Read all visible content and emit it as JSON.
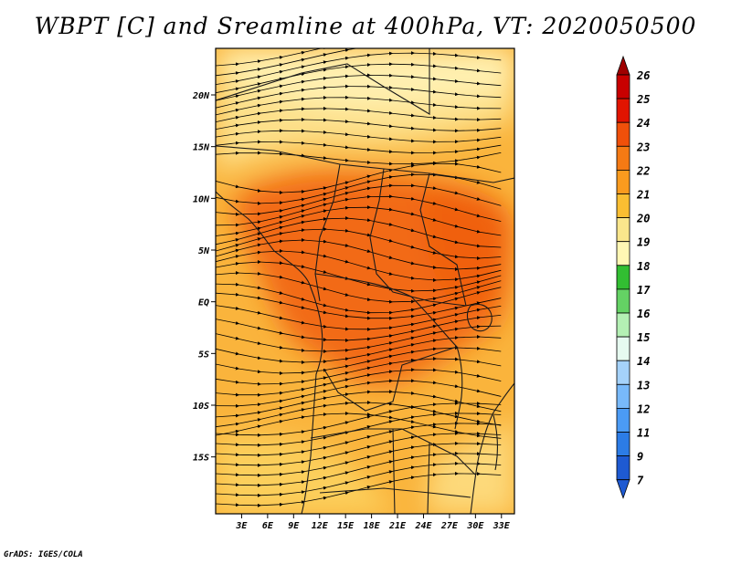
{
  "title": "WBPT [C] and Sreamline at 400hPa, VT: 2020050500",
  "credit": "GrADS: IGES/COLA",
  "map": {
    "lon_range": [
      0,
      34.5
    ],
    "lat_range": [
      -20.5,
      24.5
    ],
    "lat_ticks": [
      {
        "value": 20,
        "label": "20N"
      },
      {
        "value": 15,
        "label": "15N"
      },
      {
        "value": 10,
        "label": "10N"
      },
      {
        "value": 5,
        "label": "5N"
      },
      {
        "value": 0,
        "label": "EQ"
      },
      {
        "value": -5,
        "label": "5S"
      },
      {
        "value": -10,
        "label": "10S"
      },
      {
        "value": -15,
        "label": "15S"
      }
    ],
    "lon_ticks": [
      {
        "value": 3,
        "label": "3E"
      },
      {
        "value": 6,
        "label": "6E"
      },
      {
        "value": 9,
        "label": "9E"
      },
      {
        "value": 12,
        "label": "12E"
      },
      {
        "value": 15,
        "label": "15E"
      },
      {
        "value": 18,
        "label": "18E"
      },
      {
        "value": 21,
        "label": "21E"
      },
      {
        "value": 24,
        "label": "24E"
      },
      {
        "value": 27,
        "label": "27E"
      },
      {
        "value": 30,
        "label": "30E"
      },
      {
        "value": 33,
        "label": "33E"
      }
    ]
  },
  "colorbar": {
    "labels": [
      "26",
      "25",
      "24",
      "23",
      "22",
      "21",
      "20",
      "19",
      "18",
      "17",
      "16",
      "15",
      "14",
      "13",
      "12",
      "11",
      "9",
      "7"
    ],
    "colors": [
      "#a00000",
      "#c80000",
      "#e11400",
      "#f0500a",
      "#f57a14",
      "#fa9b1e",
      "#fabe32",
      "#fae68c",
      "#fff7b4",
      "#32be32",
      "#64d264",
      "#b4f0b4",
      "#e6faf0",
      "#a5d2fa",
      "#78b9fa",
      "#4b9bf5",
      "#2c7ce6",
      "#1e5ad2"
    ]
  }
}
